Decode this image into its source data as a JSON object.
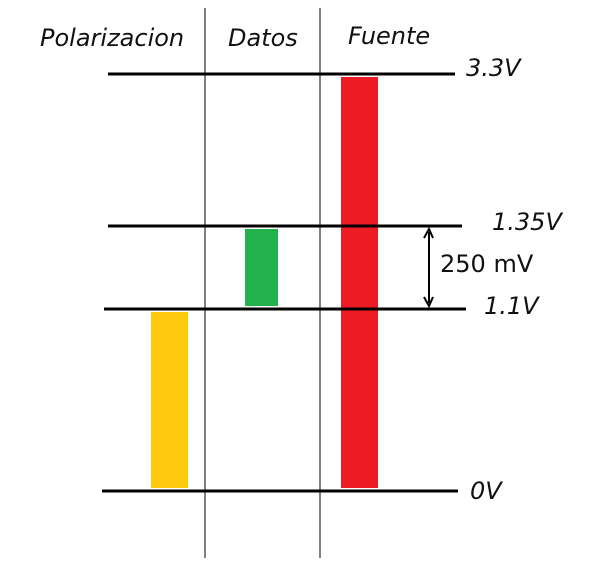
{
  "columns": [
    {
      "label": "Polarizacion"
    },
    {
      "label": "Datos"
    },
    {
      "label": "Fuente"
    }
  ],
  "levels": [
    {
      "label": "3.3V",
      "volts": 3.3
    },
    {
      "label": "1.35V",
      "volts": 1.35
    },
    {
      "label": "1.1V",
      "volts": 1.1
    },
    {
      "label": "0V",
      "volts": 0
    }
  ],
  "bars": [
    {
      "column": "Polarizacion",
      "from_volts": 0,
      "to_volts": 1.1,
      "color": "#FFC90E"
    },
    {
      "column": "Datos",
      "from_volts": 1.1,
      "to_volts": 1.35,
      "color": "#22B14C"
    },
    {
      "column": "Fuente",
      "from_volts": 0,
      "to_volts": 3.3,
      "color": "#ED1C24"
    }
  ],
  "annotation": {
    "label": "250 mV",
    "from_volts": 1.1,
    "to_volts": 1.35
  }
}
